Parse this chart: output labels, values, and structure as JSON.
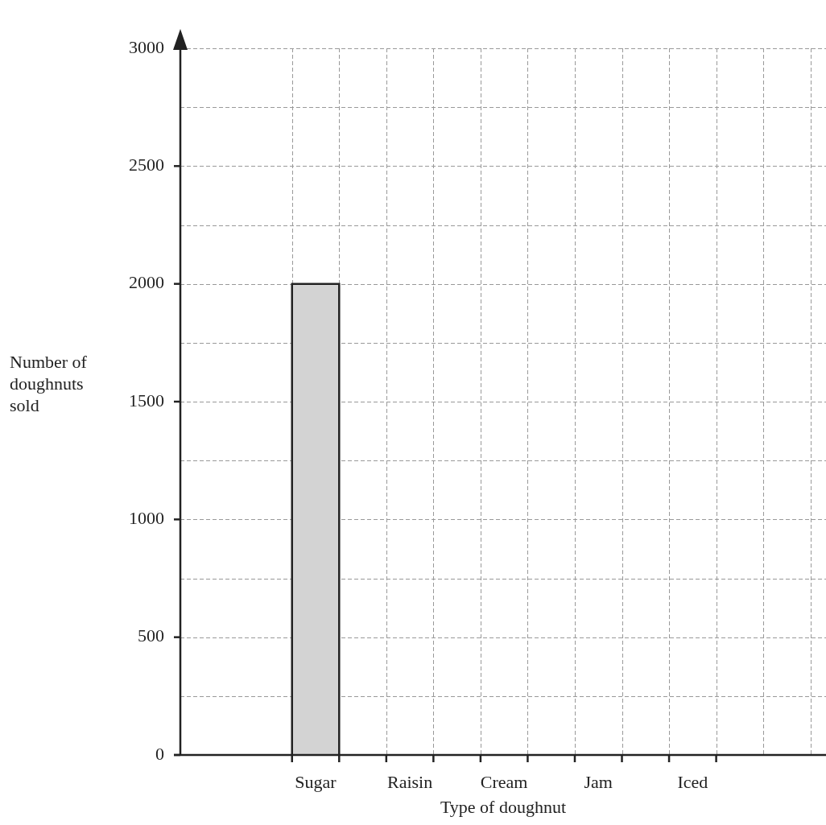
{
  "chart_data": {
    "type": "bar",
    "xlabel": "Type of doughnut",
    "ylabel": "Number of doughnuts sold",
    "categories": [
      "Sugar",
      "Raisin",
      "Cream",
      "Jam",
      "Iced"
    ],
    "values": [
      2000,
      null,
      null,
      null,
      null
    ],
    "color": "#d3d3d3",
    "ylim": [
      0,
      3000
    ],
    "yticks": [
      0,
      {
        "value": 250,
        "label": null
      },
      500,
      {
        "value": 750,
        "label": null
      },
      1000,
      {
        "value": 1250,
        "label": null
      },
      1500,
      {
        "value": 1750,
        "label": null
      },
      2000,
      {
        "value": 2250,
        "label": null
      },
      2500,
      {
        "value": 2750,
        "label": null
      },
      3000
    ],
    "grid": true
  }
}
